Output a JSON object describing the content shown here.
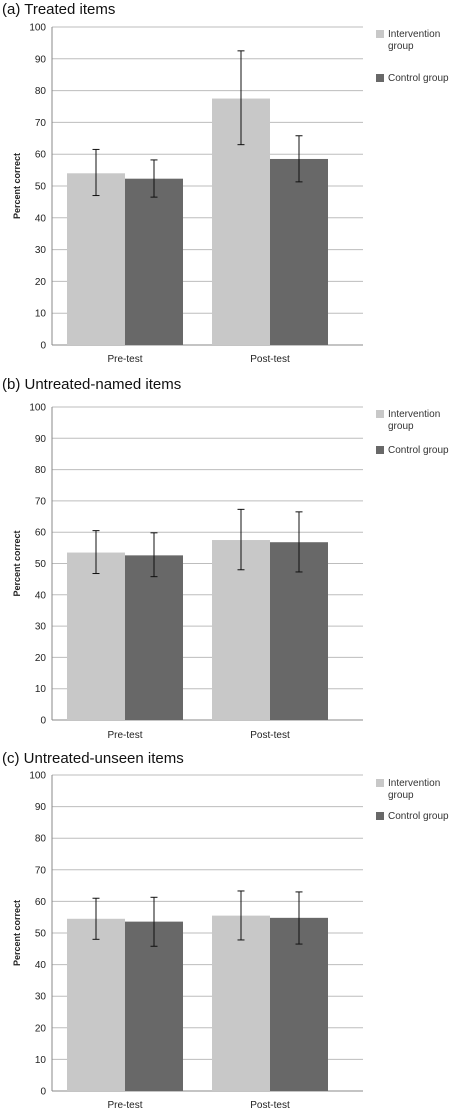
{
  "chart_data": [
    {
      "type": "bar",
      "title": "(a)  Treated items",
      "ylabel": "Percent correct",
      "xlabel": "",
      "categories": [
        "Pre-test",
        "Post-test"
      ],
      "ylim": [
        0,
        100
      ],
      "yticks": [
        "0",
        "10",
        "20",
        "30",
        "40",
        "50",
        "60",
        "70",
        "80",
        "90",
        "100"
      ],
      "grid": true,
      "legend_position": "right",
      "series": [
        {
          "name": "Intervention group",
          "color": "#c8c8c8",
          "values": [
            54,
            77.5
          ],
          "error_low": [
            47,
            63
          ],
          "error_high": [
            61.5,
            92.5
          ]
        },
        {
          "name": "Control group",
          "color": "#686868",
          "values": [
            52.3,
            58.5
          ],
          "error_low": [
            46.5,
            51.3
          ],
          "error_high": [
            58.2,
            65.8
          ]
        }
      ]
    },
    {
      "type": "bar",
      "title": "(b)  Untreated-named items",
      "ylabel": "Percent correct",
      "xlabel": "",
      "categories": [
        "Pre-test",
        "Post-test"
      ],
      "ylim": [
        0,
        100
      ],
      "yticks": [
        "0",
        "10",
        "20",
        "30",
        "40",
        "50",
        "60",
        "70",
        "80",
        "90",
        "100"
      ],
      "grid": true,
      "legend_position": "right",
      "series": [
        {
          "name": "Intervention group",
          "color": "#c8c8c8",
          "values": [
            53.5,
            57.5
          ],
          "error_low": [
            46.8,
            48
          ],
          "error_high": [
            60.5,
            67.3
          ]
        },
        {
          "name": "Control group",
          "color": "#686868",
          "values": [
            52.6,
            56.8
          ],
          "error_low": [
            45.8,
            47.3
          ],
          "error_high": [
            59.8,
            66.5
          ]
        }
      ]
    },
    {
      "type": "bar",
      "title": "(c)  Untreated-unseen items",
      "ylabel": "Percent correct",
      "xlabel": "",
      "categories": [
        "Pre-test",
        "Post-test"
      ],
      "ylim": [
        0,
        100
      ],
      "yticks": [
        "0",
        "10",
        "20",
        "30",
        "40",
        "50",
        "60",
        "70",
        "80",
        "90",
        "100"
      ],
      "grid": true,
      "legend_position": "right",
      "series": [
        {
          "name": "Intervention group",
          "color": "#c8c8c8",
          "values": [
            54.5,
            55.5
          ],
          "error_low": [
            48,
            47.8
          ],
          "error_high": [
            61,
            63.3
          ]
        },
        {
          "name": "Control group",
          "color": "#686868",
          "values": [
            53.6,
            54.8
          ],
          "error_low": [
            45.8,
            46.5
          ],
          "error_high": [
            61.3,
            63
          ]
        }
      ]
    }
  ]
}
